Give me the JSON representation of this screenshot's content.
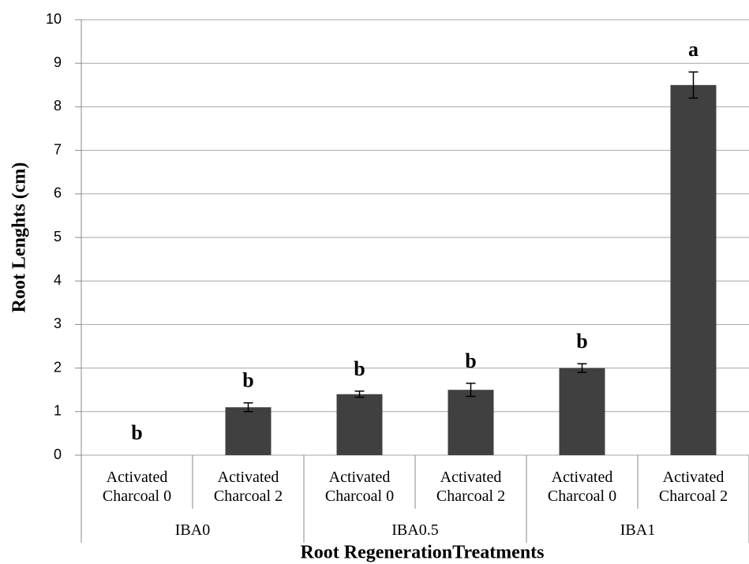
{
  "chart_data": {
    "type": "bar",
    "categories": [
      "Activated Charcoal 0",
      "Activated Charcoal 2",
      "Activated Charcoal 0",
      "Activated Charcoal 2",
      "Activated Charcoal 0",
      "Activated Charcoal 2"
    ],
    "groups": [
      "IBA0",
      "IBA0.5",
      "IBA1"
    ],
    "values": [
      0,
      1.1,
      1.4,
      1.5,
      2.0,
      8.5
    ],
    "errors": [
      null,
      0.1,
      0.07,
      0.15,
      0.1,
      0.3
    ],
    "value_labels": [
      "b",
      "b",
      "b",
      "b",
      "b",
      "a"
    ],
    "color": "#404040",
    "ylabel": "Root Lenghts (cm)",
    "xlabel": "Root RegenerationTreatments",
    "ylim": [
      0,
      10
    ],
    "yticks": [
      0,
      1,
      2,
      3,
      4,
      5,
      6,
      7,
      8,
      9,
      10
    ],
    "grid": true
  }
}
